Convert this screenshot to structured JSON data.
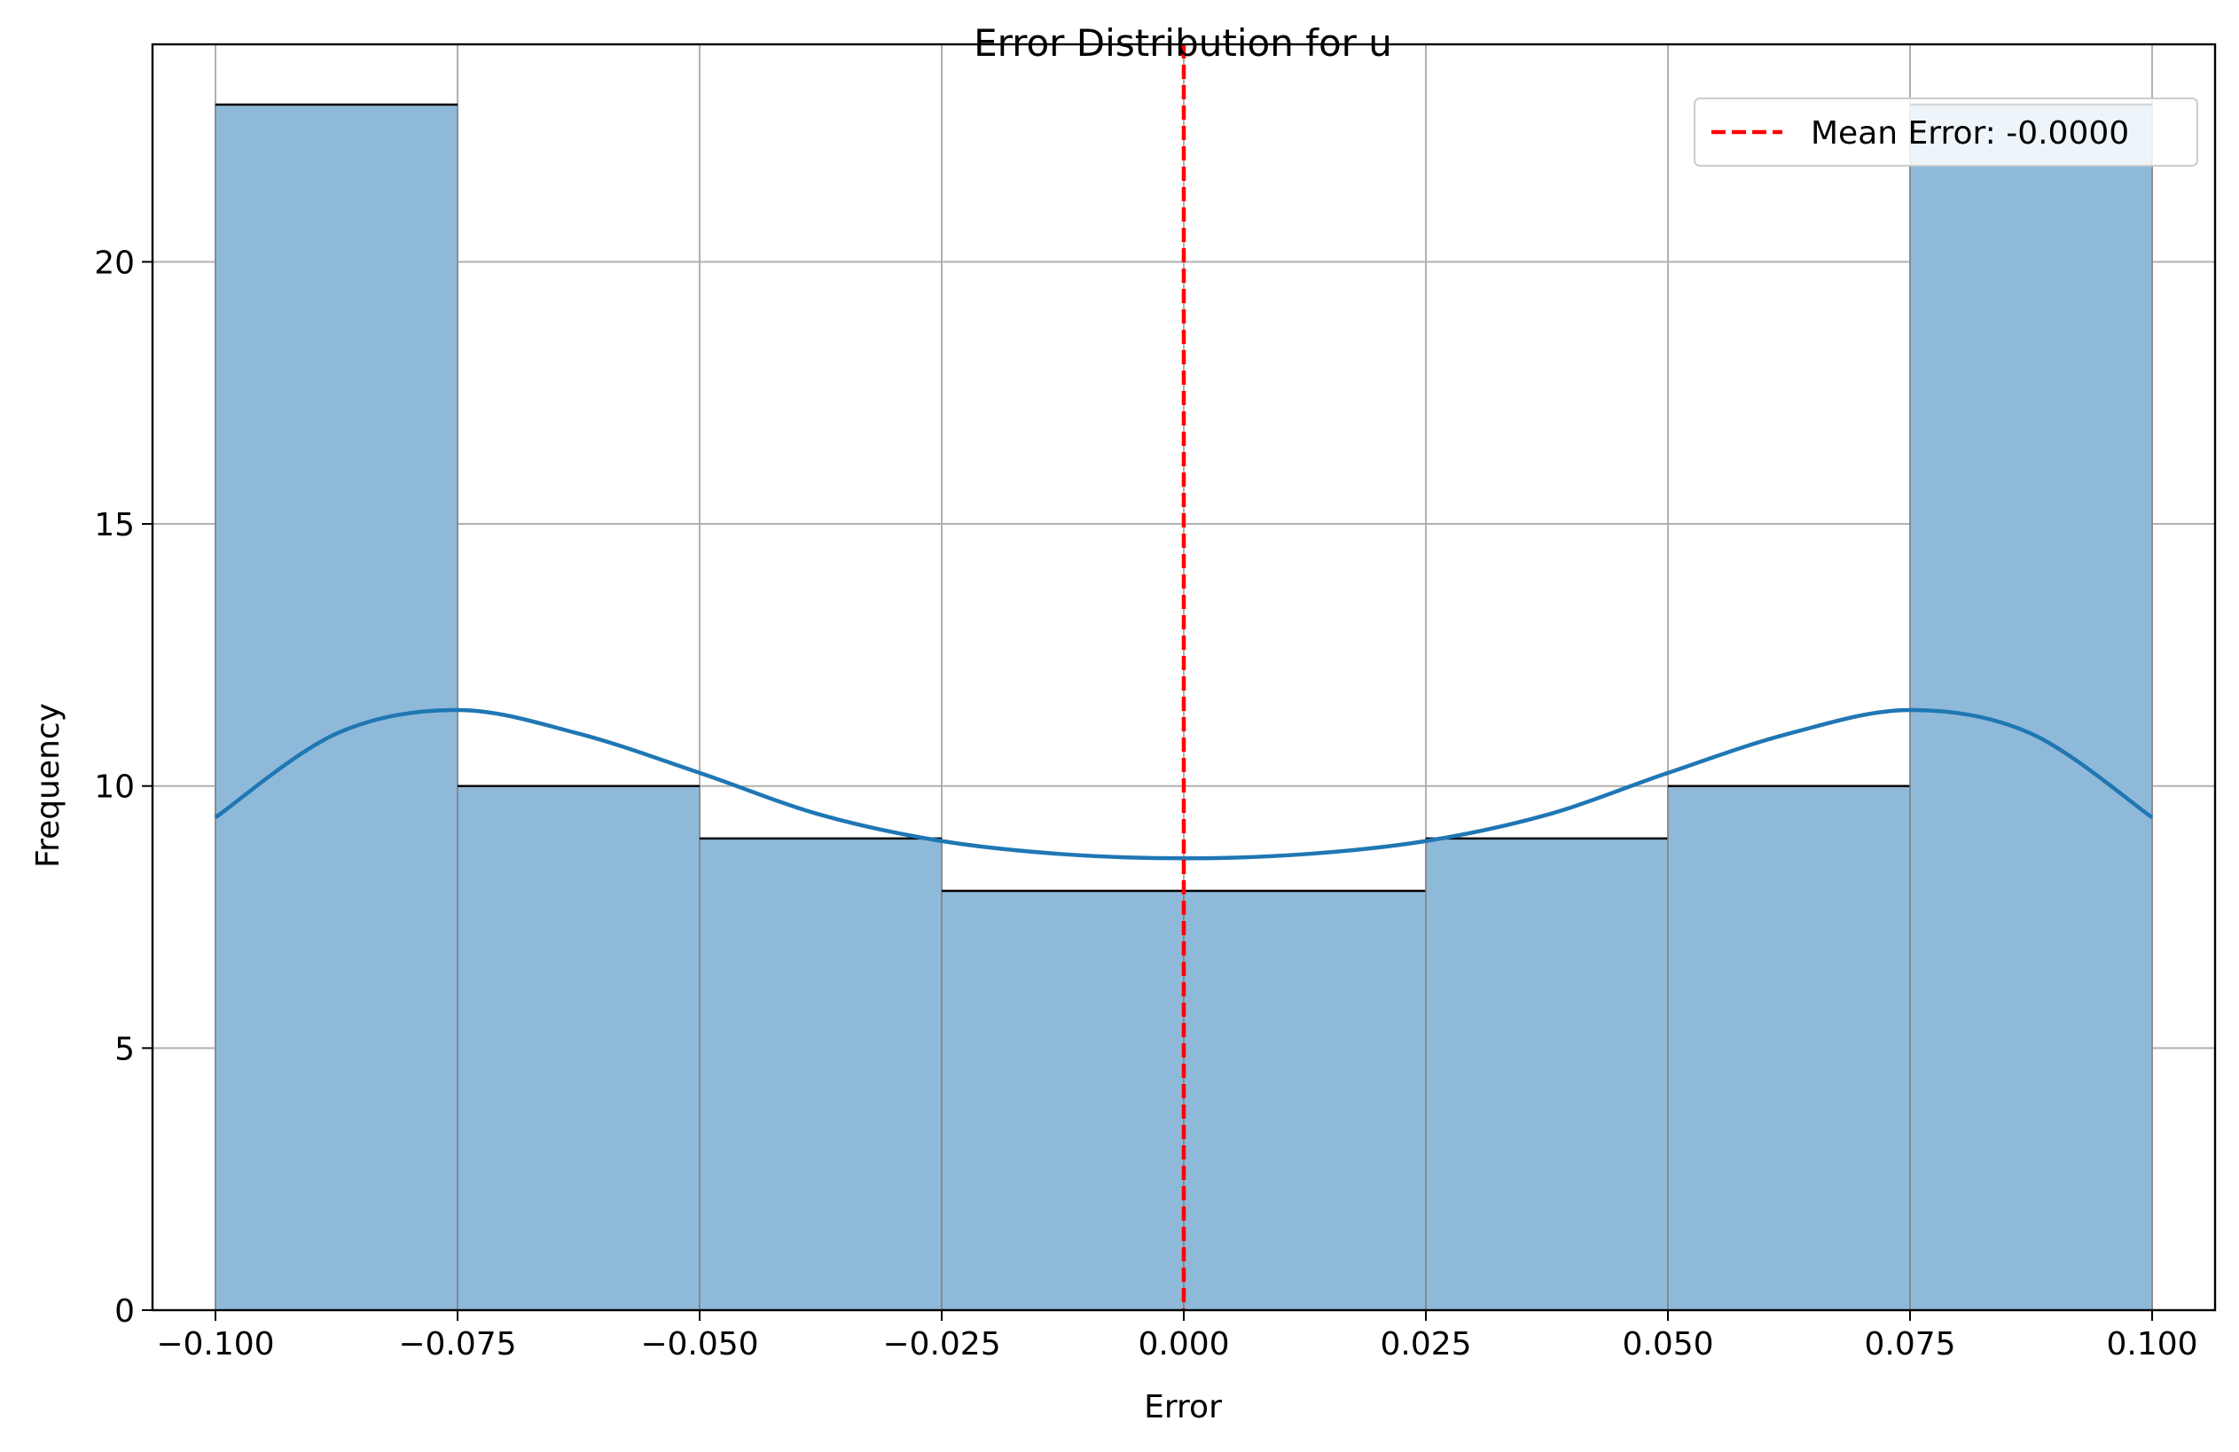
{
  "chart_data": {
    "type": "bar",
    "title": "Error Distribution for u",
    "xlabel": "Error",
    "ylabel": "Frequency",
    "xlim": [
      -0.1065,
      0.1065
    ],
    "ylim": [
      0,
      24.15
    ],
    "xticks": [
      -0.1,
      -0.075,
      -0.05,
      -0.025,
      0.0,
      0.025,
      0.05,
      0.075,
      0.1
    ],
    "xtick_labels": [
      "−0.100",
      "−0.075",
      "−0.050",
      "−0.025",
      "0.000",
      "0.025",
      "0.050",
      "0.075",
      "0.100"
    ],
    "yticks": [
      0,
      5,
      10,
      15,
      20
    ],
    "ytick_labels": [
      "0",
      "5",
      "10",
      "15",
      "20"
    ],
    "grid": true,
    "bins": [
      {
        "start": -0.1,
        "end": -0.075,
        "count": 23
      },
      {
        "start": -0.075,
        "end": -0.05,
        "count": 10
      },
      {
        "start": -0.05,
        "end": -0.025,
        "count": 9
      },
      {
        "start": -0.025,
        "end": 0.0,
        "count": 8
      },
      {
        "start": 0.0,
        "end": 0.025,
        "count": 8
      },
      {
        "start": 0.025,
        "end": 0.05,
        "count": 9
      },
      {
        "start": 0.05,
        "end": 0.075,
        "count": 10
      },
      {
        "start": 0.075,
        "end": 0.1,
        "count": 23
      }
    ],
    "kde": {
      "x": [
        -0.1,
        -0.0875,
        -0.075,
        -0.0625,
        -0.05,
        -0.0375,
        -0.025,
        -0.0125,
        0.0,
        0.0125,
        0.025,
        0.0375,
        0.05,
        0.0625,
        0.075,
        0.0875,
        0.1
      ],
      "y": [
        9.4,
        11.0,
        11.45,
        11.0,
        10.25,
        9.45,
        8.95,
        8.7,
        8.62,
        8.7,
        8.95,
        9.45,
        10.25,
        11.0,
        11.45,
        11.0,
        9.4
      ]
    },
    "mean_line": {
      "x": 0.0,
      "label": "Mean Error: -0.0000"
    },
    "legend": {
      "position": "upper right",
      "entries": [
        "Mean Error: -0.0000"
      ]
    },
    "colors": {
      "bar_fill": "#8fb9d9",
      "bar_edge": "#808080",
      "bar_top": "#000000",
      "kde_line": "#1f77b4",
      "mean_line": "#ff0000",
      "grid": "#b0b0b0"
    }
  }
}
